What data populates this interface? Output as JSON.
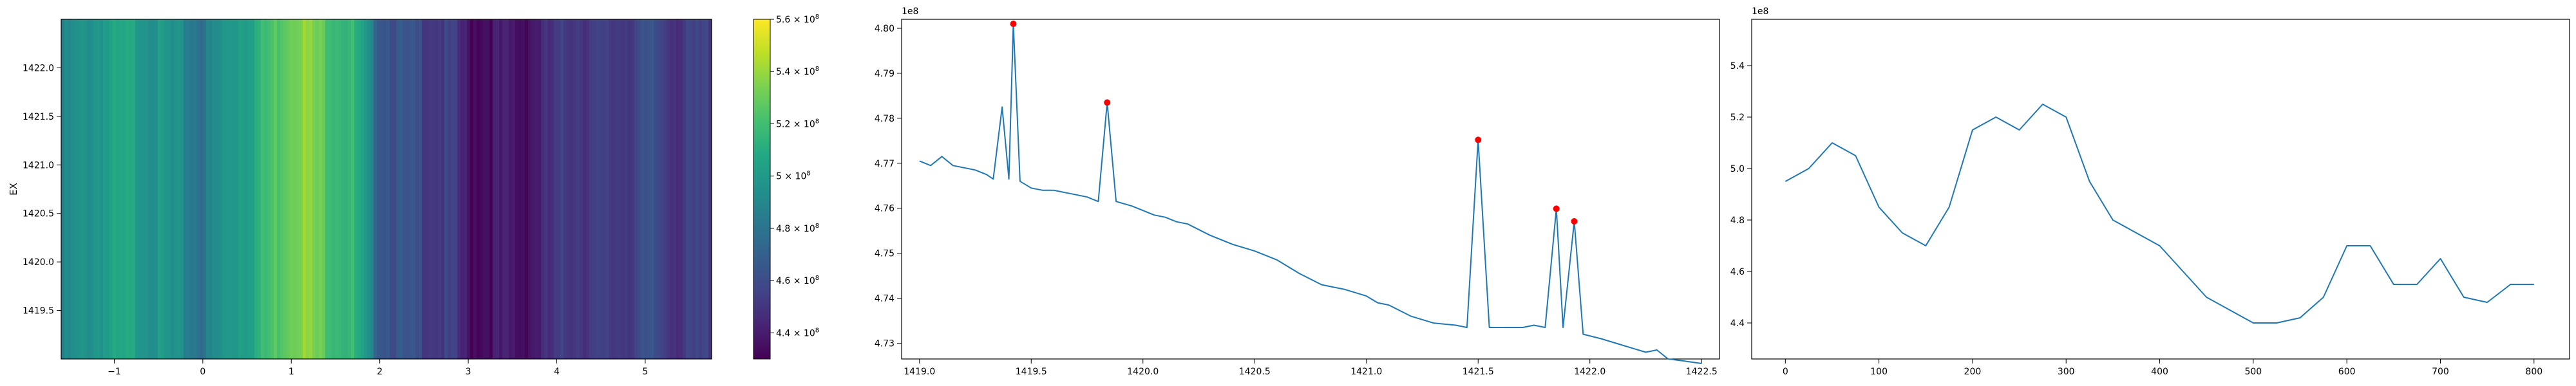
{
  "chart_data": [
    {
      "type": "heatmap",
      "title": "",
      "xlabel": "",
      "ylabel": "EX",
      "xlim": [
        -1.6,
        5.75
      ],
      "ylim": [
        1419.0,
        1422.5
      ],
      "x_ticks": [
        "−1",
        "0",
        "1",
        "2",
        "3",
        "4",
        "5"
      ],
      "x_tick_values": [
        -1,
        0,
        1,
        2,
        3,
        4,
        5
      ],
      "y_ticks": [
        "1419.5",
        "1420.0",
        "1420.5",
        "1421.0",
        "1421.5",
        "1422.0"
      ],
      "y_tick_values": [
        1419.5,
        1420.0,
        1420.5,
        1421.0,
        1421.5,
        1422.0
      ],
      "colormap": "viridis",
      "colorbar": {
        "range": [
          430000000.0,
          560000000.0
        ],
        "ticks": [
          {
            "mantissa": "4.4",
            "exp": "8",
            "value": 440000000.0
          },
          {
            "mantissa": "4.6",
            "exp": "8",
            "value": 460000000.0
          },
          {
            "mantissa": "4.8",
            "exp": "8",
            "value": 480000000.0
          },
          {
            "mantissa": "5",
            "exp": "8",
            "value": 500000000.0
          },
          {
            "mantissa": "5.2",
            "exp": "8",
            "value": 520000000.0
          },
          {
            "mantissa": "5.4",
            "exp": "8",
            "value": 540000000.0
          },
          {
            "mantissa": "5.6",
            "exp": "8",
            "value": 560000000.0
          }
        ],
        "base": "10"
      },
      "column_profile": {
        "x": [
          -1.6,
          -1.2,
          -0.8,
          -0.4,
          0.0,
          0.3,
          0.6,
          0.9,
          1.1,
          1.4,
          1.7,
          2.0,
          2.3,
          2.6,
          2.85,
          3.0,
          3.3,
          3.6,
          3.9,
          4.2,
          4.5,
          4.8,
          5.1,
          5.4,
          5.75
        ],
        "values": [
          485000000.0,
          500000000.0,
          505000000.0,
          495000000.0,
          480000000.0,
          500000000.0,
          510000000.0,
          530000000.0,
          540000000.0,
          525000000.0,
          515000000.0,
          470000000.0,
          460000000.0,
          455000000.0,
          450000000.0,
          435000000.0,
          438000000.0,
          436000000.0,
          445000000.0,
          455000000.0,
          450000000.0,
          455000000.0,
          460000000.0,
          450000000.0,
          455000000.0
        ]
      }
    },
    {
      "type": "line",
      "title": "",
      "xlabel": "",
      "ylabel": "",
      "offset_text": "1e8",
      "xlim": [
        1418.92,
        1422.58
      ],
      "ylim": [
        4.7265,
        4.802
      ],
      "x_ticks": [
        "1419.0",
        "1419.5",
        "1420.0",
        "1420.5",
        "1421.0",
        "1421.5",
        "1422.0",
        "1422.5"
      ],
      "x_tick_values": [
        1419.0,
        1419.5,
        1420.0,
        1420.5,
        1421.0,
        1421.5,
        1422.0,
        1422.5
      ],
      "y_ticks": [
        "4.73",
        "4.74",
        "4.75",
        "4.76",
        "4.77",
        "4.78",
        "4.79",
        "4.80"
      ],
      "y_tick_values": [
        4.73,
        4.74,
        4.75,
        4.76,
        4.77,
        4.78,
        4.79,
        4.8
      ],
      "series": [
        {
          "color": "#1f77b4",
          "x": [
            1419.0,
            1419.05,
            1419.1,
            1419.15,
            1419.2,
            1419.25,
            1419.3,
            1419.33,
            1419.37,
            1419.4,
            1419.42,
            1419.45,
            1419.5,
            1419.55,
            1419.6,
            1419.65,
            1419.7,
            1419.75,
            1419.8,
            1419.84,
            1419.88,
            1419.95,
            1420.0,
            1420.05,
            1420.1,
            1420.15,
            1420.2,
            1420.3,
            1420.4,
            1420.5,
            1420.6,
            1420.7,
            1420.8,
            1420.9,
            1421.0,
            1421.05,
            1421.1,
            1421.2,
            1421.3,
            1421.4,
            1421.45,
            1421.5,
            1421.55,
            1421.6,
            1421.7,
            1421.75,
            1421.8,
            1421.85,
            1421.88,
            1421.93,
            1421.97,
            1422.05,
            1422.15,
            1422.25,
            1422.3,
            1422.35,
            1422.4,
            1422.5
          ],
          "y": [
            4.7705,
            4.7695,
            4.7715,
            4.7695,
            4.769,
            4.7685,
            4.7675,
            4.7665,
            4.7825,
            4.7665,
            4.801,
            4.766,
            4.7645,
            4.764,
            4.764,
            4.7635,
            4.763,
            4.7625,
            4.7615,
            4.7835,
            4.7615,
            4.7605,
            4.7595,
            4.7585,
            4.758,
            4.757,
            4.7565,
            4.754,
            4.752,
            4.7505,
            4.7485,
            4.7455,
            4.743,
            4.742,
            4.7405,
            4.739,
            4.7385,
            4.736,
            4.7345,
            4.734,
            4.7335,
            4.7752,
            4.7335,
            4.7335,
            4.7335,
            4.734,
            4.7335,
            4.7599,
            4.7335,
            4.7571,
            4.732,
            4.731,
            4.7295,
            4.728,
            4.7285,
            4.7265,
            4.7262,
            4.7255
          ]
        }
      ],
      "markers": {
        "color": "#ff0000",
        "points": [
          {
            "x": 1419.42,
            "y": 4.801
          },
          {
            "x": 1419.84,
            "y": 4.7835
          },
          {
            "x": 1421.5,
            "y": 4.7752
          },
          {
            "x": 1421.85,
            "y": 4.7599
          },
          {
            "x": 1421.93,
            "y": 4.7571
          }
        ]
      }
    },
    {
      "type": "line",
      "title": "",
      "xlabel": "",
      "ylabel": "",
      "offset_text": "1e8",
      "xlim": [
        -36,
        838
      ],
      "ylim": [
        4.26,
        5.58
      ],
      "x_ticks": [
        "0",
        "100",
        "200",
        "300",
        "400",
        "500",
        "600",
        "700",
        "800"
      ],
      "x_tick_values": [
        0,
        100,
        200,
        300,
        400,
        500,
        600,
        700,
        800
      ],
      "y_ticks": [
        "4.4",
        "4.6",
        "4.8",
        "5.0",
        "5.2",
        "5.4"
      ],
      "y_tick_values": [
        4.4,
        4.6,
        4.8,
        5.0,
        5.2,
        5.4
      ],
      "series": [
        {
          "color": "#1f77b4",
          "x": [
            0,
            25,
            50,
            75,
            100,
            125,
            150,
            175,
            200,
            225,
            250,
            275,
            300,
            325,
            350,
            375,
            400,
            425,
            450,
            475,
            500,
            525,
            550,
            575,
            600,
            625,
            650,
            675,
            700,
            725,
            750,
            775,
            800
          ],
          "y": [
            4.95,
            5.0,
            5.1,
            5.05,
            4.85,
            4.75,
            4.7,
            4.85,
            5.15,
            5.2,
            5.15,
            5.25,
            5.2,
            4.95,
            4.8,
            4.75,
            4.7,
            4.6,
            4.5,
            4.45,
            4.4,
            4.4,
            4.42,
            4.5,
            4.7,
            4.7,
            4.55,
            4.55,
            4.65,
            4.5,
            4.48,
            4.55,
            4.55
          ]
        }
      ]
    }
  ]
}
